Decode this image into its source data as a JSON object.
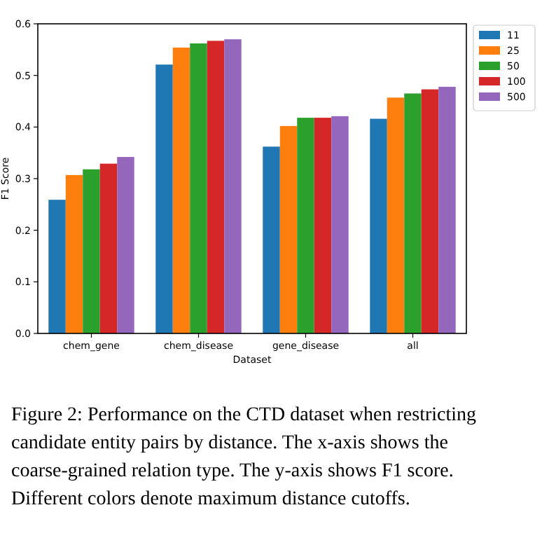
{
  "chart_data": {
    "type": "bar",
    "xlabel": "Dataset",
    "ylabel": "F1 Score",
    "categories": [
      "chem_gene",
      "chem_disease",
      "gene_disease",
      "all"
    ],
    "series": [
      {
        "name": "11",
        "color": "#1f77b4",
        "values": [
          0.259,
          0.521,
          0.362,
          0.416
        ]
      },
      {
        "name": "25",
        "color": "#ff7f0e",
        "values": [
          0.307,
          0.554,
          0.402,
          0.457
        ]
      },
      {
        "name": "50",
        "color": "#2ca02c",
        "values": [
          0.318,
          0.562,
          0.418,
          0.465
        ]
      },
      {
        "name": "100",
        "color": "#d62728",
        "values": [
          0.329,
          0.567,
          0.418,
          0.473
        ]
      },
      {
        "name": "500",
        "color": "#9467bd",
        "values": [
          0.342,
          0.57,
          0.421,
          0.478
        ]
      }
    ],
    "ylim": [
      0,
      0.6
    ],
    "yticks": [
      {
        "value": 0,
        "label": "0.0"
      },
      0.1,
      0.2,
      0.3,
      0.4,
      0.5,
      0.6
    ],
    "grid": false,
    "legend": "top right",
    "annotations": [
      "Figure 2: Performance on the CTD dataset when restricting candidate entity pairs by distance. The x-axis shows the coarse-grained relation type. The y-axis shows F1 score. Different colors denote maximum distance cutoffs."
    ]
  }
}
